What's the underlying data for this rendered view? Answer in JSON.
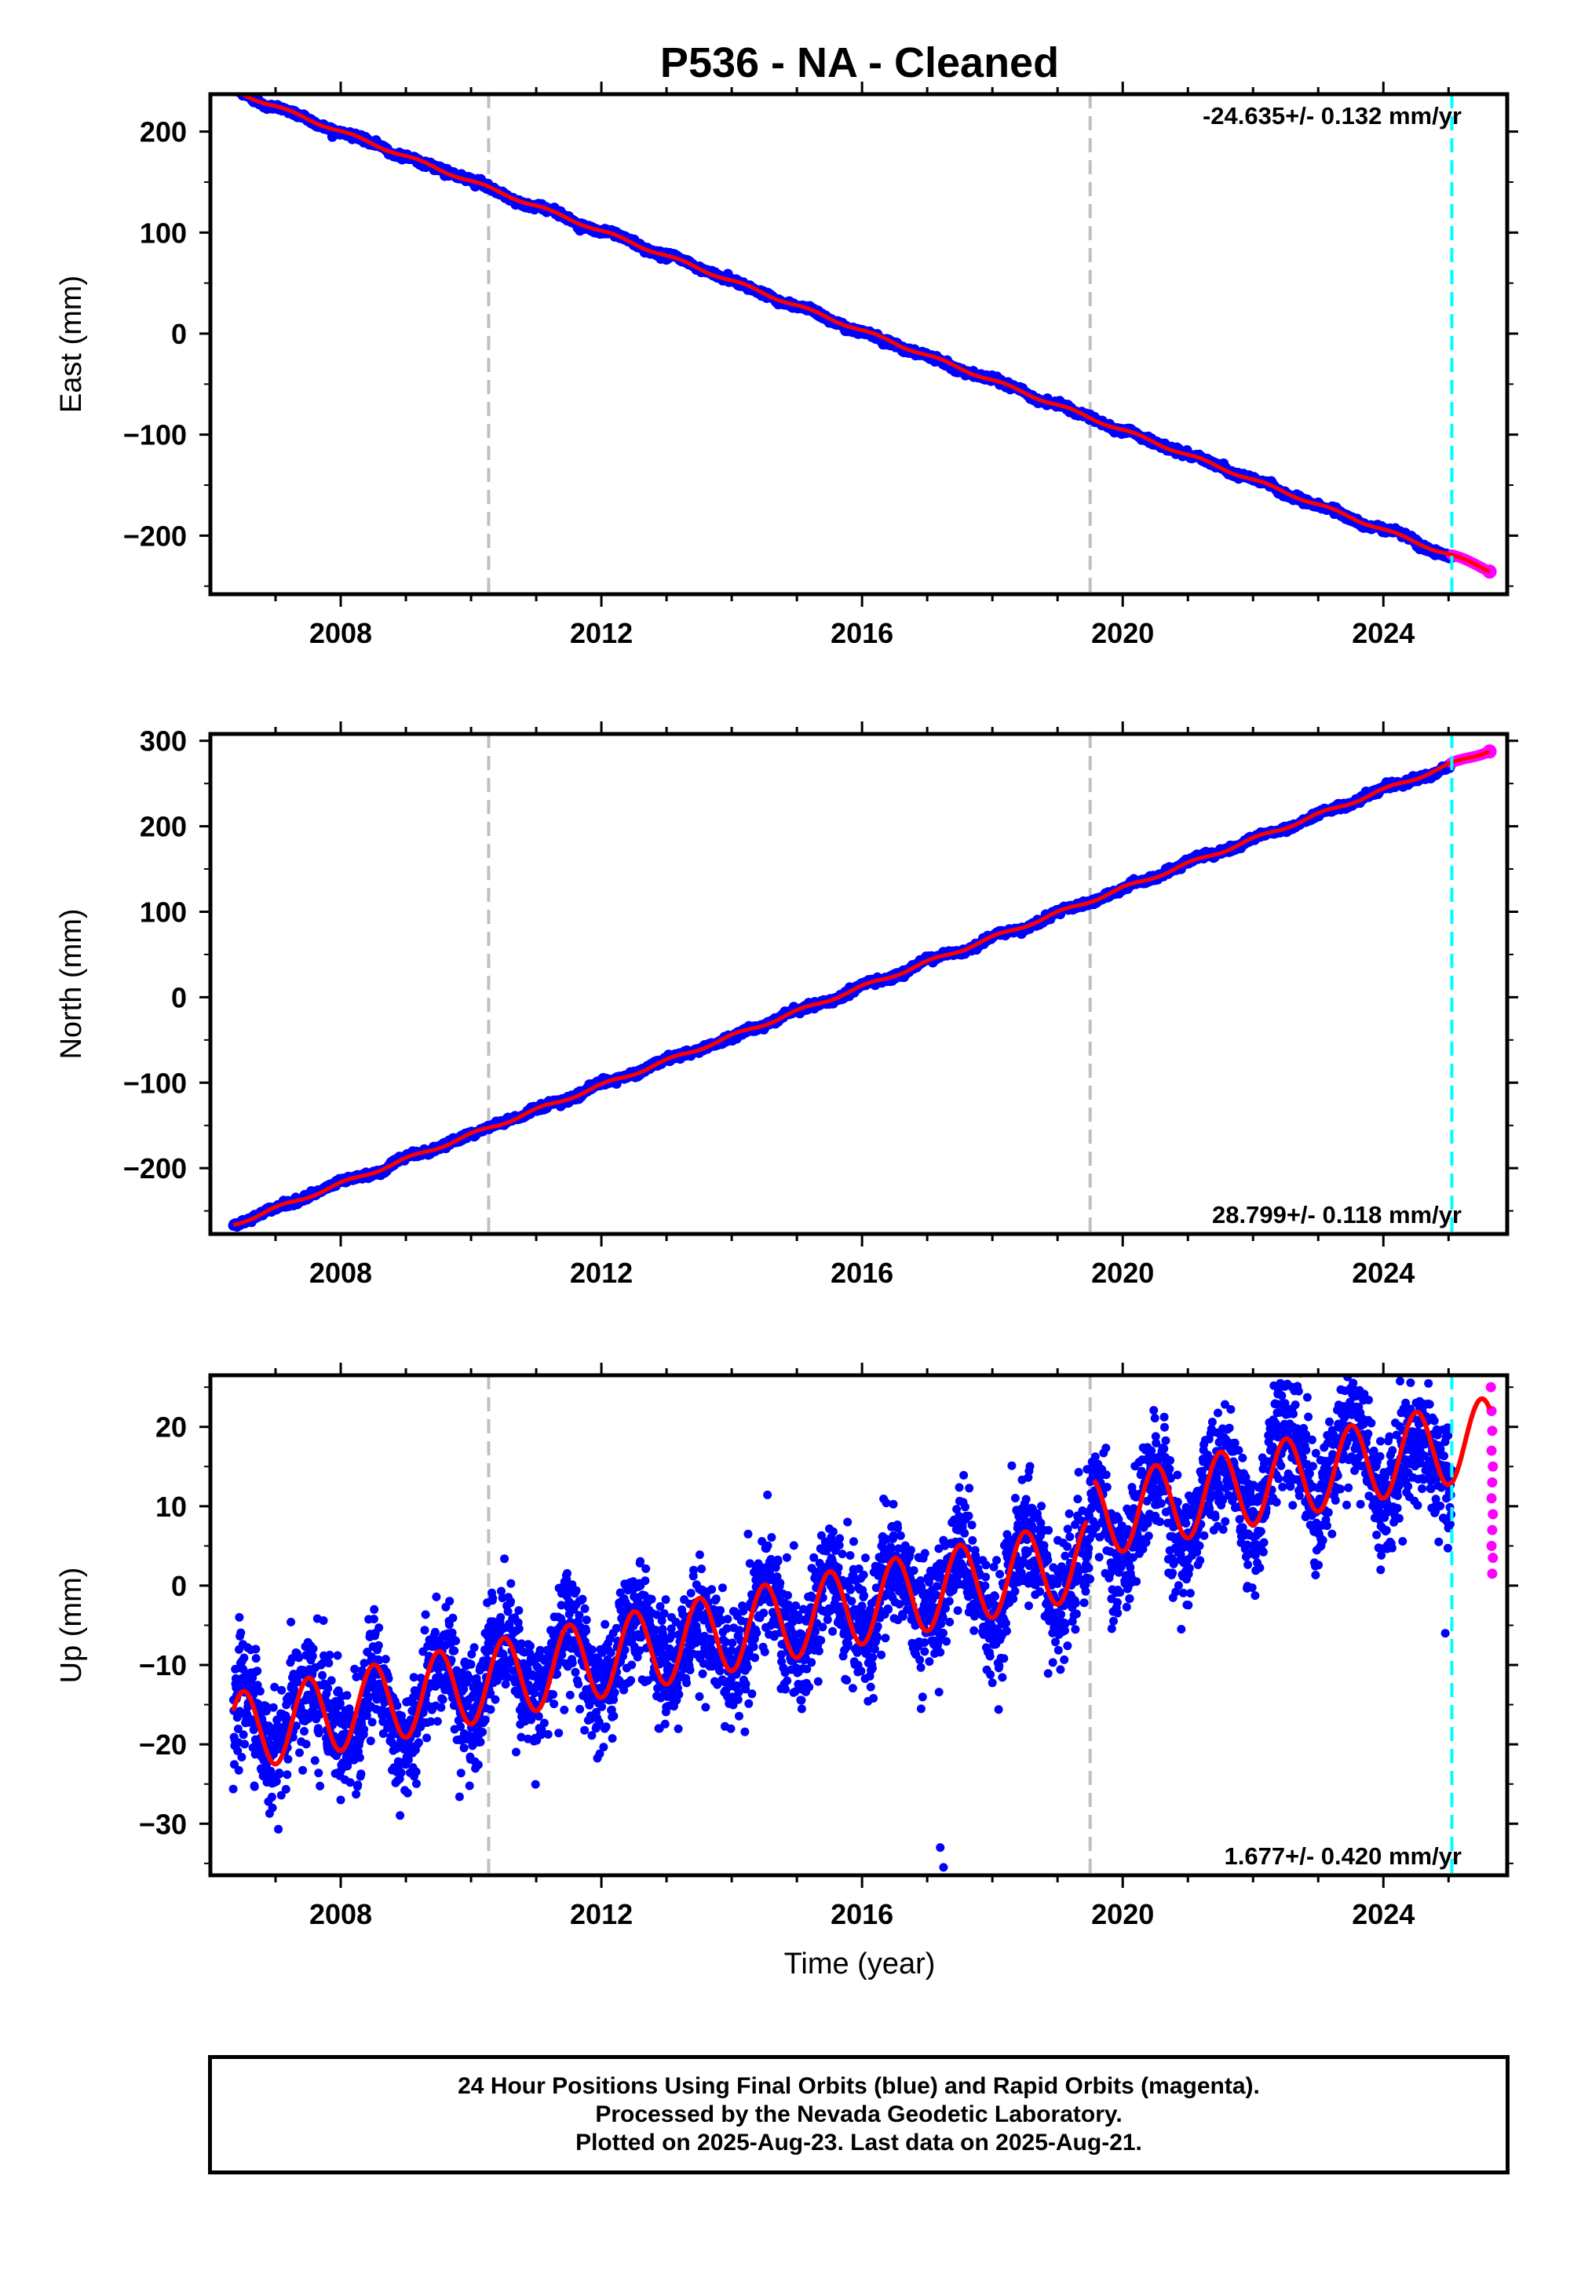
{
  "title": "P536  - NA - Cleaned",
  "xlabel": "Time (year)",
  "footer": {
    "line1": "24 Hour Positions Using Final Orbits (blue) and Rapid Orbits (magenta).",
    "line2": "Processed by the Nevada Geodetic Laboratory.",
    "line3": "Plotted on 2025-Aug-23. Last data on 2025-Aug-21."
  },
  "colors": {
    "final_orbits": "#0000ff",
    "rapid_orbits": "#ff00ff",
    "model_fit": "#ff0000",
    "equipment_change": "#c0c0c0",
    "rapid_start": "#00ffff"
  },
  "chart_data": [
    {
      "type": "scatter",
      "name": "east",
      "ylabel": "East (mm)",
      "rate_label": "-24.635+/- 0.132 mm/yr",
      "rate_position": "top-right",
      "xlim": [
        2006.0,
        2025.9
      ],
      "ylim": [
        -258,
        237
      ],
      "x_ticks": [
        "2008",
        "2012",
        "2016",
        "2020",
        "2024"
      ],
      "y_ticks": [
        "200",
        "100",
        "0",
        "−100",
        "−200"
      ],
      "y_tick_values": [
        200,
        100,
        0,
        -100,
        -200
      ],
      "x_start": 2006.35,
      "x_end": 2025.63,
      "rapid_start": 2025.05,
      "equipment_change_lines": [
        2010.27,
        2019.5
      ],
      "rapid_orbit_line": 2025.05,
      "trend": {
        "rate_mm_per_yr": -24.635,
        "value_at_2016": 3.0
      },
      "seasonal": {
        "amplitude": 1.5,
        "phase": 0.3
      },
      "scatter_sd": 1.4,
      "fit_gap": [
        2022.6,
        2023.1
      ]
    },
    {
      "type": "scatter",
      "name": "north",
      "ylabel": "North (mm)",
      "rate_label": "28.799+/- 0.118 mm/yr",
      "rate_position": "bottom-right",
      "xlim": [
        2006.0,
        2025.9
      ],
      "ylim": [
        -277,
        308
      ],
      "x_ticks": [
        "2008",
        "2012",
        "2016",
        "2020",
        "2024"
      ],
      "y_ticks": [
        "300",
        "200",
        "100",
        "0",
        "−100",
        "−200"
      ],
      "y_tick_values": [
        300,
        200,
        100,
        0,
        -100,
        -200
      ],
      "x_start": 2006.35,
      "x_end": 2025.63,
      "rapid_start": 2025.05,
      "equipment_change_lines": [
        2010.27,
        2019.5
      ],
      "rapid_orbit_line": 2025.05,
      "trend": {
        "rate_mm_per_yr": 28.799,
        "value_at_2016": 12.0
      },
      "seasonal": {
        "amplitude": 2.0,
        "phase": 1.2
      },
      "scatter_sd": 1.6,
      "fit_gap": [
        2022.6,
        2023.1
      ]
    },
    {
      "type": "scatter",
      "name": "up",
      "ylabel": "Up (mm)",
      "rate_label": "1.677+/- 0.420 mm/yr",
      "rate_position": "bottom-right",
      "xlim": [
        2006.0,
        2025.9
      ],
      "ylim": [
        -36.5,
        26.5
      ],
      "x_ticks": [
        "2008",
        "2012",
        "2016",
        "2020",
        "2024"
      ],
      "y_ticks": [
        "20",
        "10",
        "0",
        "−10",
        "−20",
        "−30"
      ],
      "y_tick_values": [
        20,
        10,
        0,
        -10,
        -20,
        -30
      ],
      "x_start": 2006.35,
      "x_end": 2025.63,
      "rapid_start": 2025.05,
      "equipment_change_lines": [
        2010.27,
        2019.5
      ],
      "rapid_orbit_line": 2025.05,
      "trend": {
        "rate_mm_per_yr": 1.677,
        "value_at_2016": -2.4
      },
      "step_at_2019_5": 5.0,
      "seasonal": {
        "amplitude": 5.0,
        "phase": -1.6
      },
      "scatter_sd": 3.6,
      "fit_gap": [
        2019.45,
        2019.55
      ],
      "outliers": [
        [
          2017.2,
          -33
        ],
        [
          2017.25,
          -35.5
        ],
        [
          2008.0,
          -27
        ],
        [
          2024.95,
          -6
        ],
        [
          2022.6,
          25
        ],
        [
          2022.7,
          24.5
        ]
      ],
      "rapid_points": [
        [
          2025.65,
          25
        ],
        [
          2025.66,
          22
        ],
        [
          2025.67,
          19.5
        ],
        [
          2025.66,
          17
        ],
        [
          2025.68,
          15
        ],
        [
          2025.67,
          13
        ],
        [
          2025.66,
          11
        ],
        [
          2025.68,
          9
        ],
        [
          2025.67,
          7
        ],
        [
          2025.66,
          5
        ],
        [
          2025.68,
          3.5
        ],
        [
          2025.67,
          1.5
        ]
      ]
    }
  ]
}
